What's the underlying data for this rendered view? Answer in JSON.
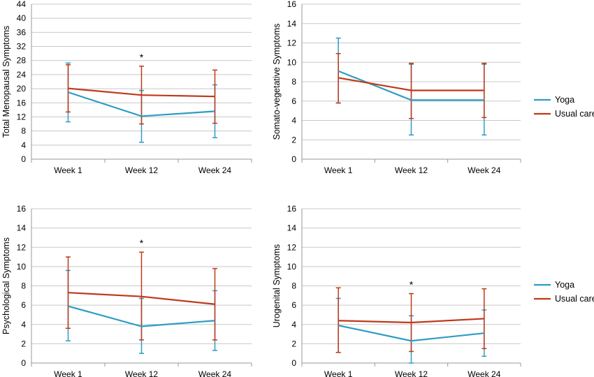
{
  "chart_data": [
    {
      "type": "line",
      "ylabel": "Total Menopausal Symptoms",
      "categories": [
        "Week 1",
        "Week 12",
        "Week 24"
      ],
      "ylim": [
        0,
        44
      ],
      "yticks": [
        0,
        4,
        8,
        12,
        16,
        20,
        24,
        28,
        32,
        36,
        40,
        44
      ],
      "grid": true,
      "legend": false,
      "significance": [
        "",
        "*",
        ""
      ],
      "series": [
        {
          "name": "Yoga",
          "color": "#2e9cc4",
          "values": [
            19.0,
            12.2,
            13.6
          ],
          "err_low": [
            10.6,
            4.8,
            6.1
          ],
          "err_high": [
            27.3,
            19.5,
            21.1
          ]
        },
        {
          "name": "Usual care",
          "color": "#c0391a",
          "values": [
            20.1,
            18.2,
            17.8
          ],
          "err_low": [
            13.4,
            10.0,
            10.2
          ],
          "err_high": [
            26.8,
            26.4,
            25.3
          ]
        }
      ]
    },
    {
      "type": "line",
      "ylabel": "Somato-vegetative Symptoms",
      "categories": [
        "Week 1",
        "Week 12",
        "Week 24"
      ],
      "ylim": [
        0,
        16
      ],
      "yticks": [
        0,
        2,
        4,
        6,
        8,
        10,
        12,
        14,
        16
      ],
      "grid": true,
      "legend": true,
      "legend_position": "right",
      "significance": [
        "",
        "",
        ""
      ],
      "series": [
        {
          "name": "Yoga",
          "color": "#2e9cc4",
          "values": [
            9.1,
            6.1,
            6.1
          ],
          "err_low": [
            5.8,
            2.5,
            2.5
          ],
          "err_high": [
            12.5,
            9.8,
            9.8
          ]
        },
        {
          "name": "Usual care",
          "color": "#c0391a",
          "values": [
            8.4,
            7.1,
            7.1
          ],
          "err_low": [
            5.8,
            4.2,
            4.3
          ],
          "err_high": [
            10.9,
            9.9,
            9.9
          ]
        }
      ]
    },
    {
      "type": "line",
      "ylabel": "Psychological Symptoms",
      "categories": [
        "Week 1",
        "Week 12",
        "Week 24"
      ],
      "ylim": [
        0,
        16
      ],
      "yticks": [
        0,
        2,
        4,
        6,
        8,
        10,
        12,
        14,
        16
      ],
      "grid": true,
      "legend": false,
      "significance": [
        "",
        "*",
        ""
      ],
      "series": [
        {
          "name": "Yoga",
          "color": "#2e9cc4",
          "values": [
            5.9,
            3.8,
            4.4
          ],
          "err_low": [
            2.3,
            1.0,
            1.3
          ],
          "err_high": [
            9.6,
            6.7,
            7.5
          ]
        },
        {
          "name": "Usual care",
          "color": "#c0391a",
          "values": [
            7.3,
            6.9,
            6.1
          ],
          "err_low": [
            3.6,
            2.4,
            2.4
          ],
          "err_high": [
            11.0,
            11.5,
            9.8
          ]
        }
      ]
    },
    {
      "type": "line",
      "ylabel": "Urogenital Symptoms",
      "categories": [
        "Week 1",
        "Week 12",
        "Week 24"
      ],
      "ylim": [
        0,
        16
      ],
      "yticks": [
        0,
        2,
        4,
        6,
        8,
        10,
        12,
        14,
        16
      ],
      "grid": true,
      "legend": true,
      "legend_position": "right",
      "significance": [
        "",
        "*",
        ""
      ],
      "series": [
        {
          "name": "Yoga",
          "color": "#2e9cc4",
          "values": [
            3.9,
            2.3,
            3.1
          ],
          "err_low": [
            1.1,
            0.0,
            0.7
          ],
          "err_high": [
            6.7,
            4.9,
            5.5
          ]
        },
        {
          "name": "Usual care",
          "color": "#c0391a",
          "values": [
            4.4,
            4.2,
            4.6
          ],
          "err_low": [
            1.1,
            1.2,
            1.5
          ],
          "err_high": [
            7.8,
            7.2,
            7.7
          ]
        }
      ]
    }
  ]
}
